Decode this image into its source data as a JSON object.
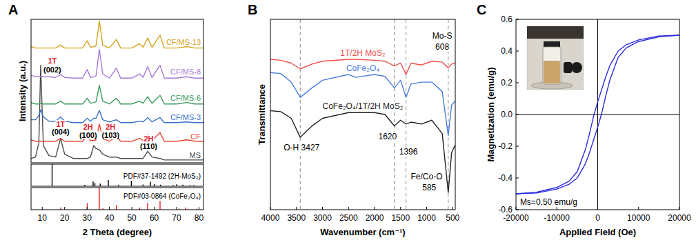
{
  "chart_data": [
    {
      "type": "line",
      "title": "A",
      "ylabel": "Intensity (a.u.)",
      "xlim": [
        5,
        82
      ],
      "ylim": [
        0,
        100
      ],
      "tick_labels": false,
      "x": [
        5,
        7,
        8.5,
        9.3,
        10.5,
        13,
        16,
        18.2,
        20,
        24,
        28,
        30.1,
        31.5,
        33,
        34,
        35.5,
        37,
        40,
        43.1,
        45,
        50,
        53.5,
        55,
        57.1,
        59,
        62.6,
        64.5,
        70,
        74.5,
        78,
        82
      ],
      "series": [
        {
          "name": "MS",
          "color": "#4d4d4d",
          "values": [
            3,
            4,
            14,
            68,
            12,
            5,
            4,
            17,
            6,
            3,
            3,
            3,
            4,
            12,
            10,
            9,
            6,
            4,
            4,
            3,
            3,
            3,
            3,
            8,
            4,
            3,
            2,
            2,
            2,
            2,
            2
          ]
        },
        {
          "name": "CF",
          "color": "#e8412e",
          "values": [
            16,
            15,
            15,
            15,
            15,
            15,
            15,
            17,
            15,
            15,
            15,
            19,
            15.5,
            15.5,
            16,
            27,
            17,
            15,
            18.5,
            15,
            15,
            17,
            15.5,
            20,
            15.5,
            21,
            15,
            15,
            16,
            15,
            15
          ]
        },
        {
          "name": "CF/MS-3",
          "color": "#3b73c8",
          "values": [
            30,
            30,
            33,
            37,
            32,
            29,
            29,
            32,
            29,
            28,
            28,
            31,
            29,
            31,
            31,
            36.5,
            30,
            28.5,
            30,
            28,
            28,
            29,
            28.5,
            31.5,
            28.5,
            31.5,
            28,
            28,
            28.5,
            28,
            28
          ]
        },
        {
          "name": "CF/MS-6",
          "color": "#3a9a5c",
          "values": [
            42,
            41,
            41,
            41.5,
            41,
            41,
            41,
            43,
            41,
            41,
            41,
            45,
            41.5,
            42,
            42.5,
            54,
            43,
            41,
            45,
            41,
            41,
            43,
            41.5,
            46,
            41.5,
            47,
            41,
            41,
            42,
            41,
            41
          ]
        },
        {
          "name": "CF/MS-8",
          "color": "#a77ad6",
          "values": [
            61,
            60,
            60,
            60,
            60,
            60,
            59.5,
            61.5,
            59.5,
            59,
            59,
            65,
            59.5,
            60,
            60.5,
            79,
            62,
            59,
            66,
            59,
            59,
            62,
            59.5,
            67,
            59.5,
            68,
            59,
            59,
            60,
            59,
            59
          ]
        },
        {
          "name": "CF/MS-13",
          "color": "#d2a21c",
          "values": [
            81,
            80,
            80,
            80,
            80,
            80,
            80,
            82,
            80,
            80,
            80,
            85,
            80.5,
            81,
            81.5,
            99,
            82,
            80,
            86,
            80,
            80,
            83,
            80.5,
            87,
            80.5,
            89,
            80,
            80,
            81,
            80,
            80
          ]
        }
      ],
      "annotations": [
        {
          "text": "1T",
          "x": 14.5,
          "y": 69,
          "color": "#e8202a"
        },
        {
          "text": "(002)",
          "x": 14.5,
          "y": 63,
          "color": "#000000"
        },
        {
          "text": "1T",
          "x": 18.2,
          "y": 25,
          "color": "#e8202a"
        },
        {
          "text": "(004)",
          "x": 18.2,
          "y": 19.5,
          "color": "#000000"
        },
        {
          "text": "2H",
          "x": 30.5,
          "y": 23,
          "color": "#e8202a"
        },
        {
          "text": "(100)",
          "x": 30.5,
          "y": 17.5,
          "color": "#000000"
        },
        {
          "text": "2H",
          "x": 40.5,
          "y": 23,
          "color": "#e8202a"
        },
        {
          "text": "(103)",
          "x": 40.5,
          "y": 17.5,
          "color": "#000000"
        },
        {
          "text": "2H",
          "x": 57.5,
          "y": 15,
          "color": "#e8202a"
        },
        {
          "text": "(110)",
          "x": 57.5,
          "y": 9.5,
          "color": "#000000"
        }
      ]
    },
    {
      "type": "stem",
      "xlim": [
        5,
        82
      ],
      "ylim": [
        0,
        100
      ],
      "tick_labels": false,
      "series": [
        {
          "name": "PDF#37-1492 (2H-MoS₂)",
          "color": "#000000",
          "x": [
            14.4,
            29.0,
            32.7,
            33.5,
            35.9,
            39.5,
            44.2,
            49.8,
            55.0,
            58.3,
            60.1,
            62.8,
            68.5,
            70.1,
            72.8,
            75.9,
            77.6
          ],
          "values": [
            100,
            6,
            22,
            15,
            12,
            28,
            7,
            25,
            8,
            20,
            10,
            7,
            5,
            9,
            7,
            5,
            4
          ]
        }
      ]
    },
    {
      "type": "stem",
      "xlabel": "2 Theta (degree)",
      "xlim": [
        5,
        82
      ],
      "xticks": [
        10,
        20,
        30,
        40,
        50,
        60,
        70,
        80
      ],
      "ylim": [
        0,
        100
      ],
      "tick_labels": "x",
      "series": [
        {
          "name": "PDF#03-0864 (CoFe₂O₄)",
          "color": "#e8202a",
          "x": [
            18.3,
            30.1,
            35.5,
            37.1,
            43.1,
            53.5,
            57.0,
            62.6,
            71.0,
            74.0,
            75.0,
            79.0
          ],
          "values": [
            10,
            30,
            100,
            8,
            22,
            10,
            30,
            40,
            5,
            10,
            4,
            5
          ]
        }
      ]
    },
    {
      "type": "line",
      "title": "B",
      "xlabel": "Wavenumber (cm⁻¹)",
      "ylabel": "Transmittance",
      "xlim": [
        4000,
        450
      ],
      "xticks": [
        4000,
        3500,
        3000,
        2500,
        2000,
        1500,
        1000,
        500
      ],
      "ylim": [
        0,
        100
      ],
      "tick_labels": "x",
      "x": [
        4000,
        3800,
        3600,
        3427,
        3200,
        3000,
        2500,
        2360,
        2000,
        1800,
        1620,
        1500,
        1396,
        1300,
        1100,
        900,
        700,
        585,
        520,
        450
      ],
      "series": [
        {
          "name": "1T/2H MoS₂",
          "color": "#f0504a",
          "values": [
            79,
            78.5,
            77,
            74,
            76.5,
            78,
            79,
            79,
            78.5,
            78,
            75.5,
            77,
            71,
            77,
            76,
            78,
            77.5,
            74.5,
            76.5,
            77
          ]
        },
        {
          "name": "CoFe₂O₄",
          "color": "#4a7de0",
          "values": [
            72,
            71.5,
            67,
            59,
            64,
            68,
            71,
            69.5,
            71,
            70,
            64,
            68,
            59,
            66,
            67,
            67,
            62,
            39,
            55,
            57
          ]
        },
        {
          "name": "CoFe₂O₄/1T/2H MoS₂",
          "color": "#222222",
          "values": [
            52,
            51.5,
            48,
            38,
            44,
            48,
            51,
            51,
            51,
            50,
            44,
            47,
            45,
            46,
            45,
            47,
            40,
            9,
            30,
            34
          ]
        }
      ],
      "vlines": [
        3427,
        1620,
        1396,
        585
      ],
      "annotations": [
        {
          "text": "O-H 3427",
          "x": 3400,
          "y": 31,
          "color": "#000000"
        },
        {
          "text": "1620",
          "x": 1750,
          "y": 37,
          "color": "#000000"
        },
        {
          "text": "1396",
          "x": 1350,
          "y": 29,
          "color": "#000000"
        },
        {
          "text": "Mo-S",
          "x": 700,
          "y": 90,
          "color": "#000000"
        },
        {
          "text": "608",
          "x": 700,
          "y": 84,
          "color": "#000000"
        },
        {
          "text": "Fe/Co-O",
          "x": 1000,
          "y": 16,
          "color": "#000000"
        },
        {
          "text": "585",
          "x": 950,
          "y": 10,
          "color": "#000000"
        }
      ]
    },
    {
      "type": "line",
      "title": "C",
      "xlabel": "Applied Field (Oe)",
      "ylabel": "Magnetization (emu/g)",
      "xlim": [
        -20000,
        20000
      ],
      "xticks": [
        -20000,
        -10000,
        0,
        10000,
        20000
      ],
      "ylim": [
        -0.6,
        0.6
      ],
      "yticks": [
        -0.6,
        -0.4,
        -0.2,
        {
          "value": 0,
          "label": "0.0"
        },
        0.2,
        0.4,
        0.6
      ],
      "series": [
        {
          "color": "#2a2ae0",
          "x": [
            20000,
            15000,
            10000,
            7000,
            5000,
            3000,
            2000,
            1000,
            0,
            -1000,
            -2000,
            -3000,
            -5000,
            -7000,
            -10000,
            -15000,
            -20000
          ],
          "values": [
            0.5,
            0.495,
            0.47,
            0.44,
            0.4,
            0.31,
            0.24,
            0.16,
            0.08,
            -0.01,
            -0.12,
            -0.22,
            -0.36,
            -0.42,
            -0.46,
            -0.49,
            -0.5
          ]
        },
        {
          "color": "#2a2ae0",
          "x": [
            -20000,
            -15000,
            -10000,
            -7000,
            -5000,
            -3000,
            -2000,
            -1000,
            0,
            1000,
            2000,
            3000,
            5000,
            7000,
            10000,
            15000,
            20000
          ],
          "values": [
            -0.5,
            -0.495,
            -0.47,
            -0.44,
            -0.4,
            -0.31,
            -0.24,
            -0.16,
            -0.08,
            0.01,
            0.12,
            0.22,
            0.36,
            0.42,
            0.46,
            0.49,
            0.5
          ]
        }
      ],
      "annotations": [
        {
          "text": "Ms=0.50 emu/g",
          "x": -12000,
          "y": -0.57,
          "color": "#000000"
        }
      ]
    }
  ]
}
